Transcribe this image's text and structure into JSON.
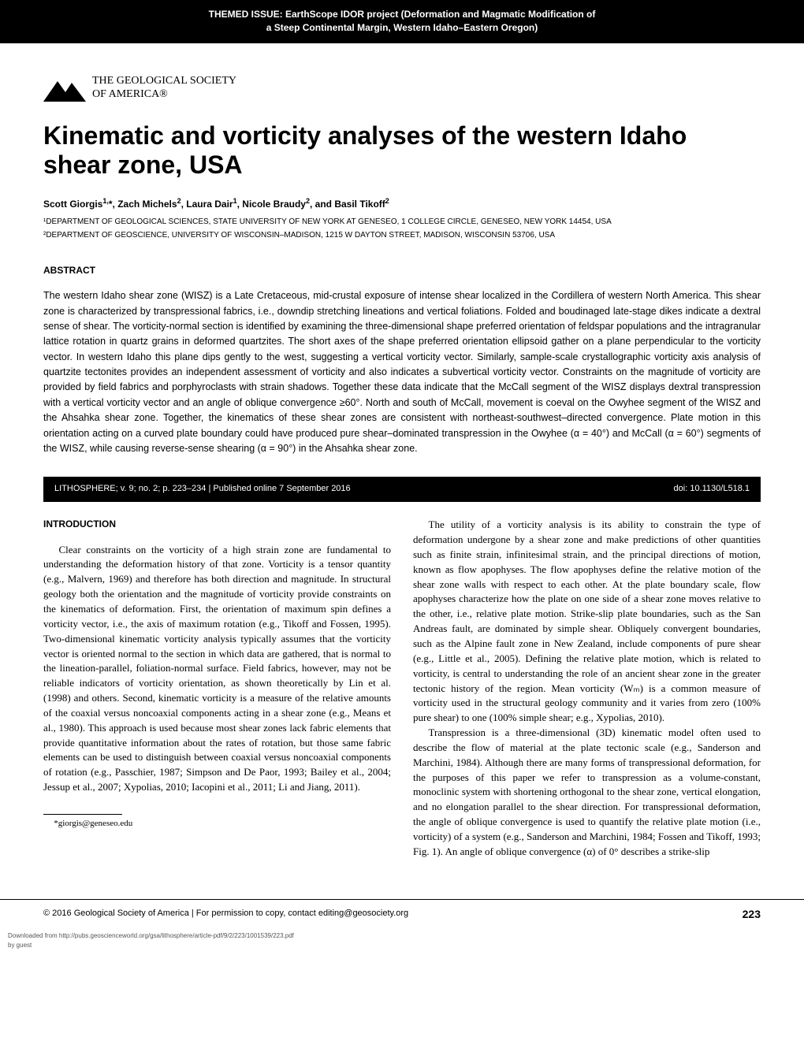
{
  "header": {
    "line1": "THEMED ISSUE:  EarthScope IDOR project (Deformation and Magmatic Modification of",
    "line2": "a Steep Continental Margin, Western Idaho–Eastern Oregon)"
  },
  "society": {
    "line1": "THE GEOLOGICAL SOCIETY",
    "line2": "OF AMERICA®"
  },
  "title": "Kinematic and vorticity analyses of the western Idaho shear zone, USA",
  "authors_html": "Scott Giorgis<sup>1,</sup>*, Zach Michels<sup>2</sup>, Laura Dair<sup>1</sup>, Nicole Braudy<sup>2</sup>, and Basil Tikoff<sup>2</sup>",
  "affiliations": [
    "¹DEPARTMENT OF GEOLOGICAL SCIENCES, STATE UNIVERSITY OF NEW YORK AT GENESEO, 1 COLLEGE CIRCLE, GENESEO, NEW YORK 14454, USA",
    "²DEPARTMENT OF GEOSCIENCE, UNIVERSITY OF WISCONSIN–MADISON, 1215 W DAYTON STREET, MADISON, WISCONSIN 53706, USA"
  ],
  "abstract_heading": "ABSTRACT",
  "abstract": "The western Idaho shear zone (WISZ) is a Late Cretaceous, mid-crustal exposure of intense shear localized in the Cordillera of western North America. This shear zone is characterized by transpressional fabrics, i.e., downdip stretching lineations and vertical foliations. Folded and boudinaged late-stage dikes indicate a dextral sense of shear. The vorticity-normal section is identified by examining the three-dimensional shape preferred orientation of feldspar populations and the intragranular lattice rotation in quartz grains in deformed quartzites. The short axes of the shape preferred orientation ellipsoid gather on a plane perpendicular to the vorticity vector. In western Idaho this plane dips gently to the west, suggesting a vertical vorticity vector. Similarly, sample-scale crystallographic vorticity axis analysis of quartzite tectonites provides an independent assessment of vorticity and also indicates a subvertical vorticity vector. Constraints on the magnitude of vorticity are provided by field fabrics and porphyroclasts with strain shadows. Together these data indicate that the McCall segment of the WISZ displays dextral transpression with a vertical vorticity vector and an angle of oblique convergence ≥60°. North and south of McCall, movement is coeval on the Owyhee segment of the WISZ and the Ahsahka shear zone. Together, the kinematics of these shear zones are consistent with northeast-southwest–directed convergence. Plate motion in this orientation acting on a curved plate boundary could have produced pure shear–dominated transpression in the Owyhee (α = 40°) and McCall (α = 60°) segments of the WISZ, while causing reverse-sense shearing (α = 90°) in the Ahsahka shear zone.",
  "pub_bar": {
    "left": "LITHOSPHERE; v. 9; no. 2; p. 223–234  |  Published online 7 September 2016",
    "right": "doi: 10.1130/L518.1"
  },
  "intro_heading": "INTRODUCTION",
  "col_left": [
    "Clear constraints on the vorticity of a high strain zone are fundamental to understanding the deformation history of that zone. Vorticity is a tensor quantity (e.g., Malvern, 1969) and therefore has both direction and magnitude. In structural geology both the orientation and the magnitude of vorticity provide constraints on the kinematics of deformation. First, the orientation of maximum spin defines a vorticity vector, i.e., the axis of maximum rotation (e.g., Tikoff and Fossen, 1995). Two-dimensional kinematic vorticity analysis typically assumes that the vorticity vector is oriented normal to the section in which data are gathered, that is normal to the lineation-parallel, foliation-normal surface. Field fabrics, however, may not be reliable indicators of vorticity orientation, as shown theoretically by Lin et al. (1998) and others. Second, kinematic vorticity is a measure of the relative amounts of the coaxial versus noncoaxial components acting in a shear zone (e.g., Means et al., 1980). This approach is used because most shear zones lack fabric elements that provide quantitative information about the rates of rotation, but those same fabric elements can be used to distinguish between coaxial versus noncoaxial components of rotation (e.g., Passchier, 1987; Simpson and De Paor, 1993; Bailey et al., 2004; Jessup et al., 2007; Xypolias, 2010; Iacopini et al., 2011; Li and Jiang, 2011)."
  ],
  "col_right": [
    "The utility of a vorticity analysis is its ability to constrain the type of deformation undergone by a shear zone and make predictions of other quantities such as finite strain, infinitesimal strain, and the principal directions of motion, known as flow apophyses. The flow apophyses define the relative motion of the shear zone walls with respect to each other. At the plate boundary scale, flow apophyses characterize how the plate on one side of a shear zone moves relative to the other, i.e., relative plate motion. Strike-slip plate boundaries, such as the San Andreas fault, are dominated by simple shear. Obliquely convergent boundaries, such as the Alpine fault zone in New Zealand, include components of pure shear (e.g., Little et al., 2005). Defining the relative plate motion, which is related to vorticity, is central to understanding the role of an ancient shear zone in the greater tectonic history of the region. Mean vorticity (Wₘ) is a common measure of vorticity used in the structural geology community and it varies from zero (100% pure shear) to one (100% simple shear; e.g., Xypolias, 2010).",
    "Transpression is a three-dimensional (3D) kinematic model often used to describe the flow of material at the plate tectonic scale (e.g., Sanderson and Marchini, 1984). Although there are many forms of transpressional deformation, for the purposes of this paper we refer to transpression as a volume-constant, monoclinic system with shortening orthogonal to the shear zone, vertical elongation, and no elongation parallel to the shear direction. For transpressional deformation, the angle of oblique convergence is used to quantify the relative plate motion (i.e., vorticity) of a system (e.g., Sanderson and Marchini, 1984; Fossen and Tikoff, 1993; Fig. 1). An angle of oblique convergence (α) of 0° describes a strike-slip"
  ],
  "footnote": "*giorgis@geneseo.edu",
  "footer": {
    "left": "© 2016 Geological Society of America  |  For permission to copy, contact editing@geosociety.org",
    "page": "223"
  },
  "download": {
    "line1": "Downloaded from http://pubs.geoscienceworld.org/gsa/lithosphere/article-pdf/9/2/223/1001539/223.pdf",
    "line2": "by guest"
  }
}
